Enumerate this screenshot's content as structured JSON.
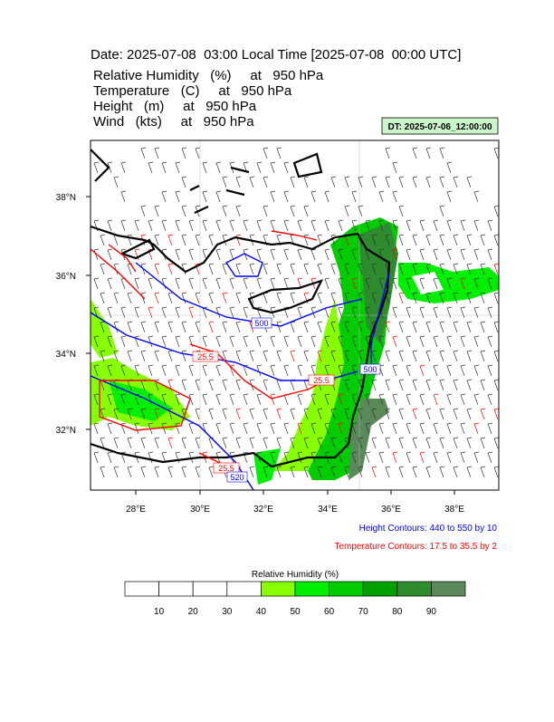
{
  "header": {
    "title": "Date: 2025-07-08  03:00 Local Time [2025-07-08  00:00 UTC]",
    "lines": [
      "Relative Humidity   (%)     at   950 hPa",
      "Temperature   (C)     at   950 hPa",
      "Height   (m)     at   950 hPa",
      "Wind   (kts)     at   950 hPa"
    ],
    "dt": "DT: 2025-07-06_12:00:00"
  },
  "map": {
    "lat_labels": [
      "38°N",
      "36°N",
      "34°N",
      "32°N"
    ],
    "lon_labels": [
      "28°E",
      "30°E",
      "32°E",
      "34°E",
      "36°E",
      "38°E"
    ],
    "contour_labels": [
      {
        "text": "500",
        "color": "#0000ff"
      },
      {
        "text": "25.5",
        "color": "#ff0000"
      },
      {
        "text": "500",
        "color": "#0000ff"
      },
      {
        "text": "25.5",
        "color": "#ff0000"
      },
      {
        "text": "25.5",
        "color": "#ff0000"
      },
      {
        "text": "520",
        "color": "#0000ff"
      }
    ]
  },
  "legend": {
    "height": "Height Contours: 440 to 550 by 10",
    "temperature": "Temperature Contours: 17.5 to 35.5 by 2"
  },
  "colorbar": {
    "title": "Relative Humidity  (%)",
    "labels": [
      "10",
      "20",
      "30",
      "40",
      "50",
      "60",
      "70",
      "80",
      "90"
    ],
    "colors": [
      "#ffffff",
      "#ffffff",
      "#ffffff",
      "#ffffff",
      "#88ff00",
      "#00ee00",
      "#00cc00",
      "#00a000",
      "#2e8b2e",
      "#5a8a5a"
    ]
  }
}
